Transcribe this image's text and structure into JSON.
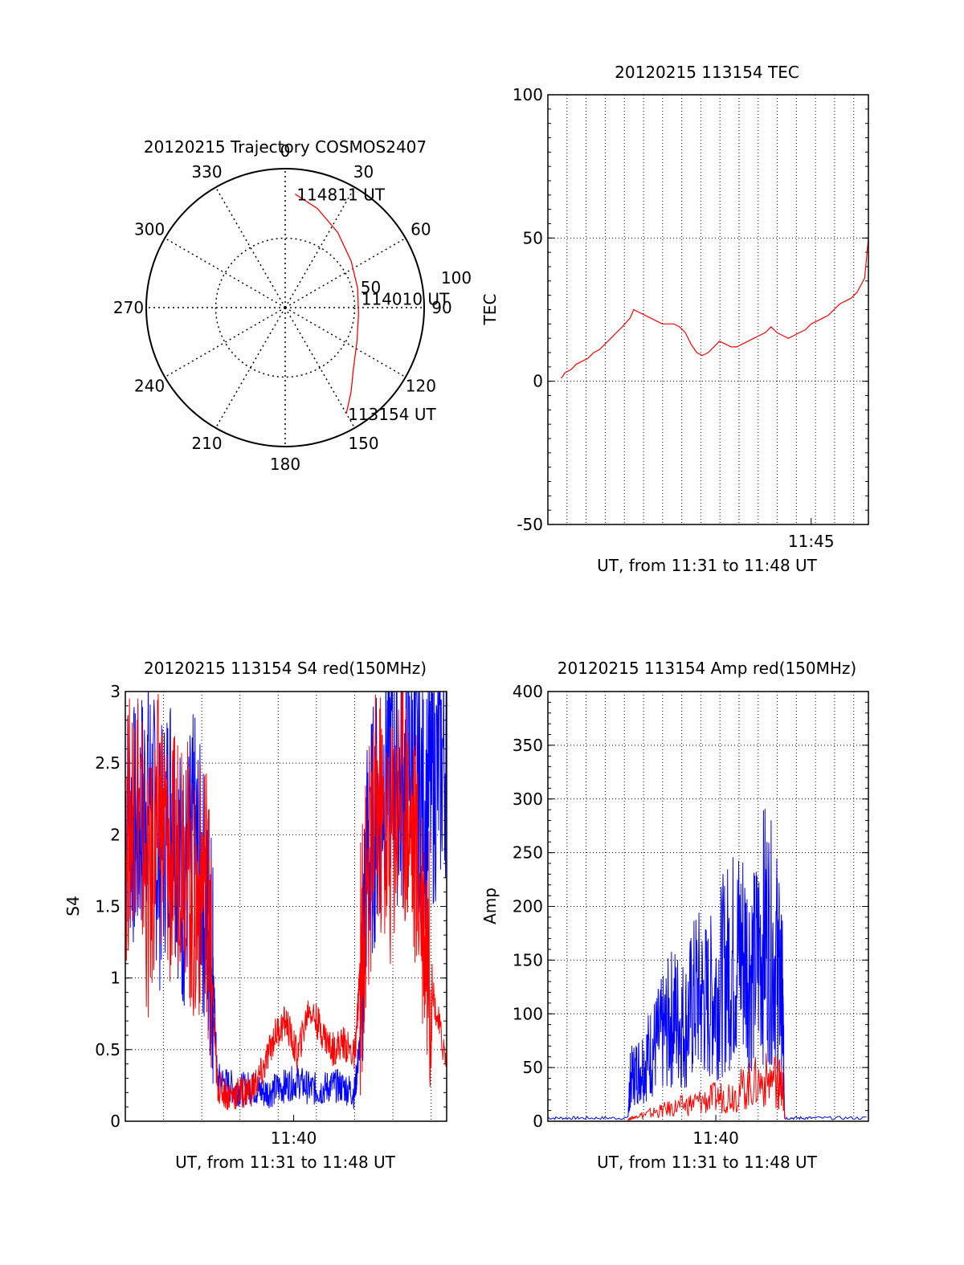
{
  "colors": {
    "red": "#ff0000",
    "blue": "#0000ff",
    "axis": "#000000",
    "grid": "#000000"
  },
  "chart_data": [
    {
      "id": "trajectory",
      "type": "polar",
      "title": "20120215 Trajectory COSMOS2407",
      "azimuth_labels": [
        "0",
        "30",
        "60",
        "90",
        "120",
        "150",
        "180",
        "210",
        "240",
        "270",
        "300",
        "330"
      ],
      "radial_labels": [
        "50",
        "100"
      ],
      "radial_max": 100,
      "annotations": [
        {
          "text": "114811 UT",
          "az": 5,
          "zen": 82
        },
        {
          "text": "114010 UT",
          "az": 83,
          "zen": 54
        },
        {
          "text": "113154 UT",
          "az": 150,
          "zen": 88
        }
      ],
      "track": {
        "color": "red",
        "points": [
          [
            5,
            82
          ],
          [
            18,
            75
          ],
          [
            35,
            66
          ],
          [
            55,
            58
          ],
          [
            75,
            54
          ],
          [
            95,
            53
          ],
          [
            115,
            57
          ],
          [
            132,
            66
          ],
          [
            142,
            77
          ],
          [
            150,
            88
          ]
        ]
      }
    },
    {
      "id": "tec",
      "type": "line",
      "title": "20120215 113154 TEC",
      "xlabel": "UT, from 11:31 to 11:48 UT",
      "ylabel": "TEC",
      "xlim": [
        11.52,
        11.8
      ],
      "ylim": [
        -50,
        100
      ],
      "yticks": [
        "-50",
        "0",
        "50",
        "100"
      ],
      "xtick_values": [
        11.75
      ],
      "xtick_labels": [
        "11:45"
      ],
      "x_grid_step": 0.0167,
      "series": [
        {
          "color": "red",
          "x": [
            11.5317,
            11.535,
            11.54,
            11.545,
            11.55,
            11.555,
            11.56,
            11.565,
            11.57,
            11.575,
            11.58,
            11.585,
            11.5917,
            11.595,
            11.6,
            11.605,
            11.61,
            11.615,
            11.62,
            11.625,
            11.63,
            11.635,
            11.64,
            11.645,
            11.65,
            11.655,
            11.66,
            11.665,
            11.67,
            11.675,
            11.68,
            11.685,
            11.69,
            11.695,
            11.7,
            11.705,
            11.71,
            11.715,
            11.72,
            11.725,
            11.73,
            11.735,
            11.74,
            11.745,
            11.75,
            11.755,
            11.76,
            11.765,
            11.77,
            11.775,
            11.78,
            11.785,
            11.79,
            11.7967,
            11.8
          ],
          "y": [
            1,
            3,
            4,
            6,
            7,
            8,
            10,
            11,
            13,
            15,
            17,
            19,
            22,
            25,
            24,
            23,
            22,
            21,
            20,
            20,
            20,
            19,
            17,
            13,
            10,
            9,
            10,
            12,
            14,
            13,
            12,
            12,
            13,
            14,
            15,
            16,
            17,
            19,
            17,
            16,
            15,
            16,
            17,
            18,
            20,
            21,
            22,
            23,
            25,
            27,
            28,
            29,
            31,
            36,
            50
          ]
        }
      ]
    },
    {
      "id": "s4",
      "type": "line",
      "title": "20120215 113154 S4 red(150MHz)",
      "xlabel": "UT, from 11:31 to 11:48 UT",
      "ylabel": "S4",
      "xlim": [
        11.52,
        11.8
      ],
      "ylim": [
        0,
        3
      ],
      "yticks": [
        "0",
        "0.5",
        "1",
        "1.5",
        "2",
        "2.5",
        "3"
      ],
      "xtick_values": [
        11.6667
      ],
      "xtick_labels": [
        "11:40"
      ],
      "x_grid_step": 0.0333,
      "series": [
        {
          "color": "blue",
          "x": [
            11.52,
            11.53,
            11.54,
            11.55,
            11.56,
            11.57,
            11.58,
            11.59,
            11.596,
            11.6,
            11.61,
            11.62,
            11.63,
            11.64,
            11.65,
            11.66,
            11.67,
            11.68,
            11.69,
            11.7,
            11.71,
            11.72,
            11.725,
            11.73,
            11.74,
            11.75,
            11.76,
            11.77,
            11.78,
            11.79,
            11.8
          ],
          "y": [
            2.2,
            2.0,
            2.4,
            1.8,
            2.3,
            1.6,
            2.0,
            1.5,
            1.2,
            0.3,
            0.25,
            0.22,
            0.24,
            0.2,
            0.22,
            0.25,
            0.28,
            0.23,
            0.22,
            0.25,
            0.24,
            0.2,
            0.6,
            1.8,
            2.2,
            2.6,
            2.3,
            2.5,
            2.2,
            2.4,
            2.6
          ]
        },
        {
          "color": "red",
          "x": [
            11.52,
            11.53,
            11.54,
            11.55,
            11.56,
            11.57,
            11.58,
            11.59,
            11.596,
            11.6,
            11.61,
            11.62,
            11.63,
            11.64,
            11.65,
            11.66,
            11.67,
            11.68,
            11.69,
            11.7,
            11.71,
            11.72,
            11.725,
            11.73,
            11.74,
            11.75,
            11.76,
            11.77,
            11.78,
            11.79,
            11.8
          ],
          "y": [
            1.9,
            2.4,
            1.5,
            2.2,
            1.7,
            2.1,
            1.4,
            1.8,
            0.9,
            0.25,
            0.18,
            0.2,
            0.22,
            0.35,
            0.6,
            0.7,
            0.45,
            0.8,
            0.65,
            0.5,
            0.55,
            0.45,
            1.1,
            1.6,
            2.2,
            1.9,
            2.4,
            2.0,
            1.5,
            0.8,
            0.4
          ]
        }
      ]
    },
    {
      "id": "amp",
      "type": "line",
      "title": "20120215 113154 Amp red(150MHz)",
      "xlabel": "UT, from 11:31 to 11:48 UT",
      "ylabel": "Amp",
      "xlim": [
        11.52,
        11.8
      ],
      "ylim": [
        0,
        400
      ],
      "yticks": [
        "0",
        "50",
        "100",
        "150",
        "200",
        "250",
        "300",
        "350",
        "400"
      ],
      "xtick_values": [
        11.6667
      ],
      "xtick_labels": [
        "11:40"
      ],
      "x_grid_step": 0.0167,
      "series": [
        {
          "color": "blue",
          "x": [
            11.52,
            11.55,
            11.59,
            11.592,
            11.6,
            11.61,
            11.62,
            11.63,
            11.64,
            11.65,
            11.66,
            11.67,
            11.68,
            11.69,
            11.7,
            11.71,
            11.72,
            11.725,
            11.727,
            11.75,
            11.8
          ],
          "y": [
            3,
            3,
            3,
            40,
            50,
            65,
            80,
            100,
            90,
            120,
            110,
            130,
            150,
            160,
            140,
            180,
            150,
            110,
            3,
            3,
            3
          ]
        },
        {
          "color": "red",
          "x": [
            11.59,
            11.6,
            11.62,
            11.64,
            11.66,
            11.68,
            11.7,
            11.72,
            11.725,
            11.727
          ],
          "y": [
            2,
            5,
            10,
            15,
            20,
            25,
            35,
            40,
            30,
            1
          ]
        }
      ]
    }
  ]
}
